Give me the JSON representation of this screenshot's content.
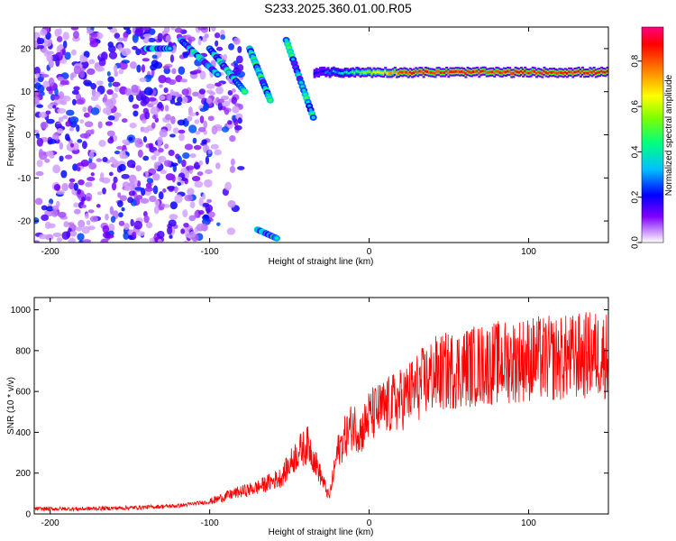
{
  "title": "S233.2025.360.01.00.R05",
  "chart_data": [
    {
      "type": "heatmap",
      "xlabel": "Height of straight line (km)",
      "ylabel": "Frequency (Hz)",
      "xlim": [
        -210,
        150
      ],
      "ylim": [
        -25,
        25
      ],
      "xticks": [
        -200,
        -100,
        0,
        100
      ],
      "yticks": [
        -20,
        -10,
        0,
        10,
        20
      ],
      "colorbar": {
        "label": "Normalized spectral amplitude",
        "ticks": [
          0.0,
          0.2,
          0.4,
          0.6,
          0.8
        ],
        "range": [
          0,
          0.95
        ],
        "colors": [
          "#ffffff",
          "#8000ff",
          "#0000ff",
          "#00c0ff",
          "#00ff80",
          "#ffff00",
          "#ff8000",
          "#ff0000",
          "#ff0080"
        ]
      },
      "features": {
        "noise_region_x": [
          -210,
          -100
        ],
        "band_start_x": -35,
        "band_frequency": 14.5,
        "band_peak_amplitude": 0.95,
        "streaks": [
          {
            "x": [
              -140,
              -125
            ],
            "y": [
              20,
              20
            ]
          },
          {
            "x": [
              -118,
              -95
            ],
            "y": [
              22,
              14
            ]
          },
          {
            "x": [
              -100,
              -78
            ],
            "y": [
              20,
              10
            ]
          },
          {
            "x": [
              -75,
              -62
            ],
            "y": [
              20,
              8
            ]
          },
          {
            "x": [
              -52,
              -35
            ],
            "y": [
              22,
              4
            ]
          },
          {
            "x": [
              -70,
              -58
            ],
            "y": [
              -22,
              -24
            ]
          }
        ]
      }
    },
    {
      "type": "line",
      "xlabel": "Height of straight line (km)",
      "ylabel": "SNR (10 * v/v)",
      "xlim": [
        -210,
        150
      ],
      "ylim": [
        0,
        1060
      ],
      "xticks": [
        -200,
        -100,
        0,
        100
      ],
      "yticks": [
        0,
        200,
        400,
        600,
        800,
        1000
      ],
      "series": [
        {
          "color": "#ff0000",
          "x": [
            -210,
            -180,
            -150,
            -120,
            -100,
            -85,
            -70,
            -55,
            -45,
            -38,
            -30,
            -25,
            -20,
            -15,
            -10,
            -5,
            0,
            10,
            20,
            30,
            40,
            60,
            80,
            100,
            120,
            140,
            150
          ],
          "y": [
            25,
            25,
            30,
            40,
            60,
            100,
            130,
            180,
            300,
            340,
            180,
            80,
            300,
            380,
            440,
            400,
            480,
            520,
            560,
            620,
            680,
            720,
            740,
            760,
            760,
            780,
            780
          ]
        }
      ]
    }
  ]
}
